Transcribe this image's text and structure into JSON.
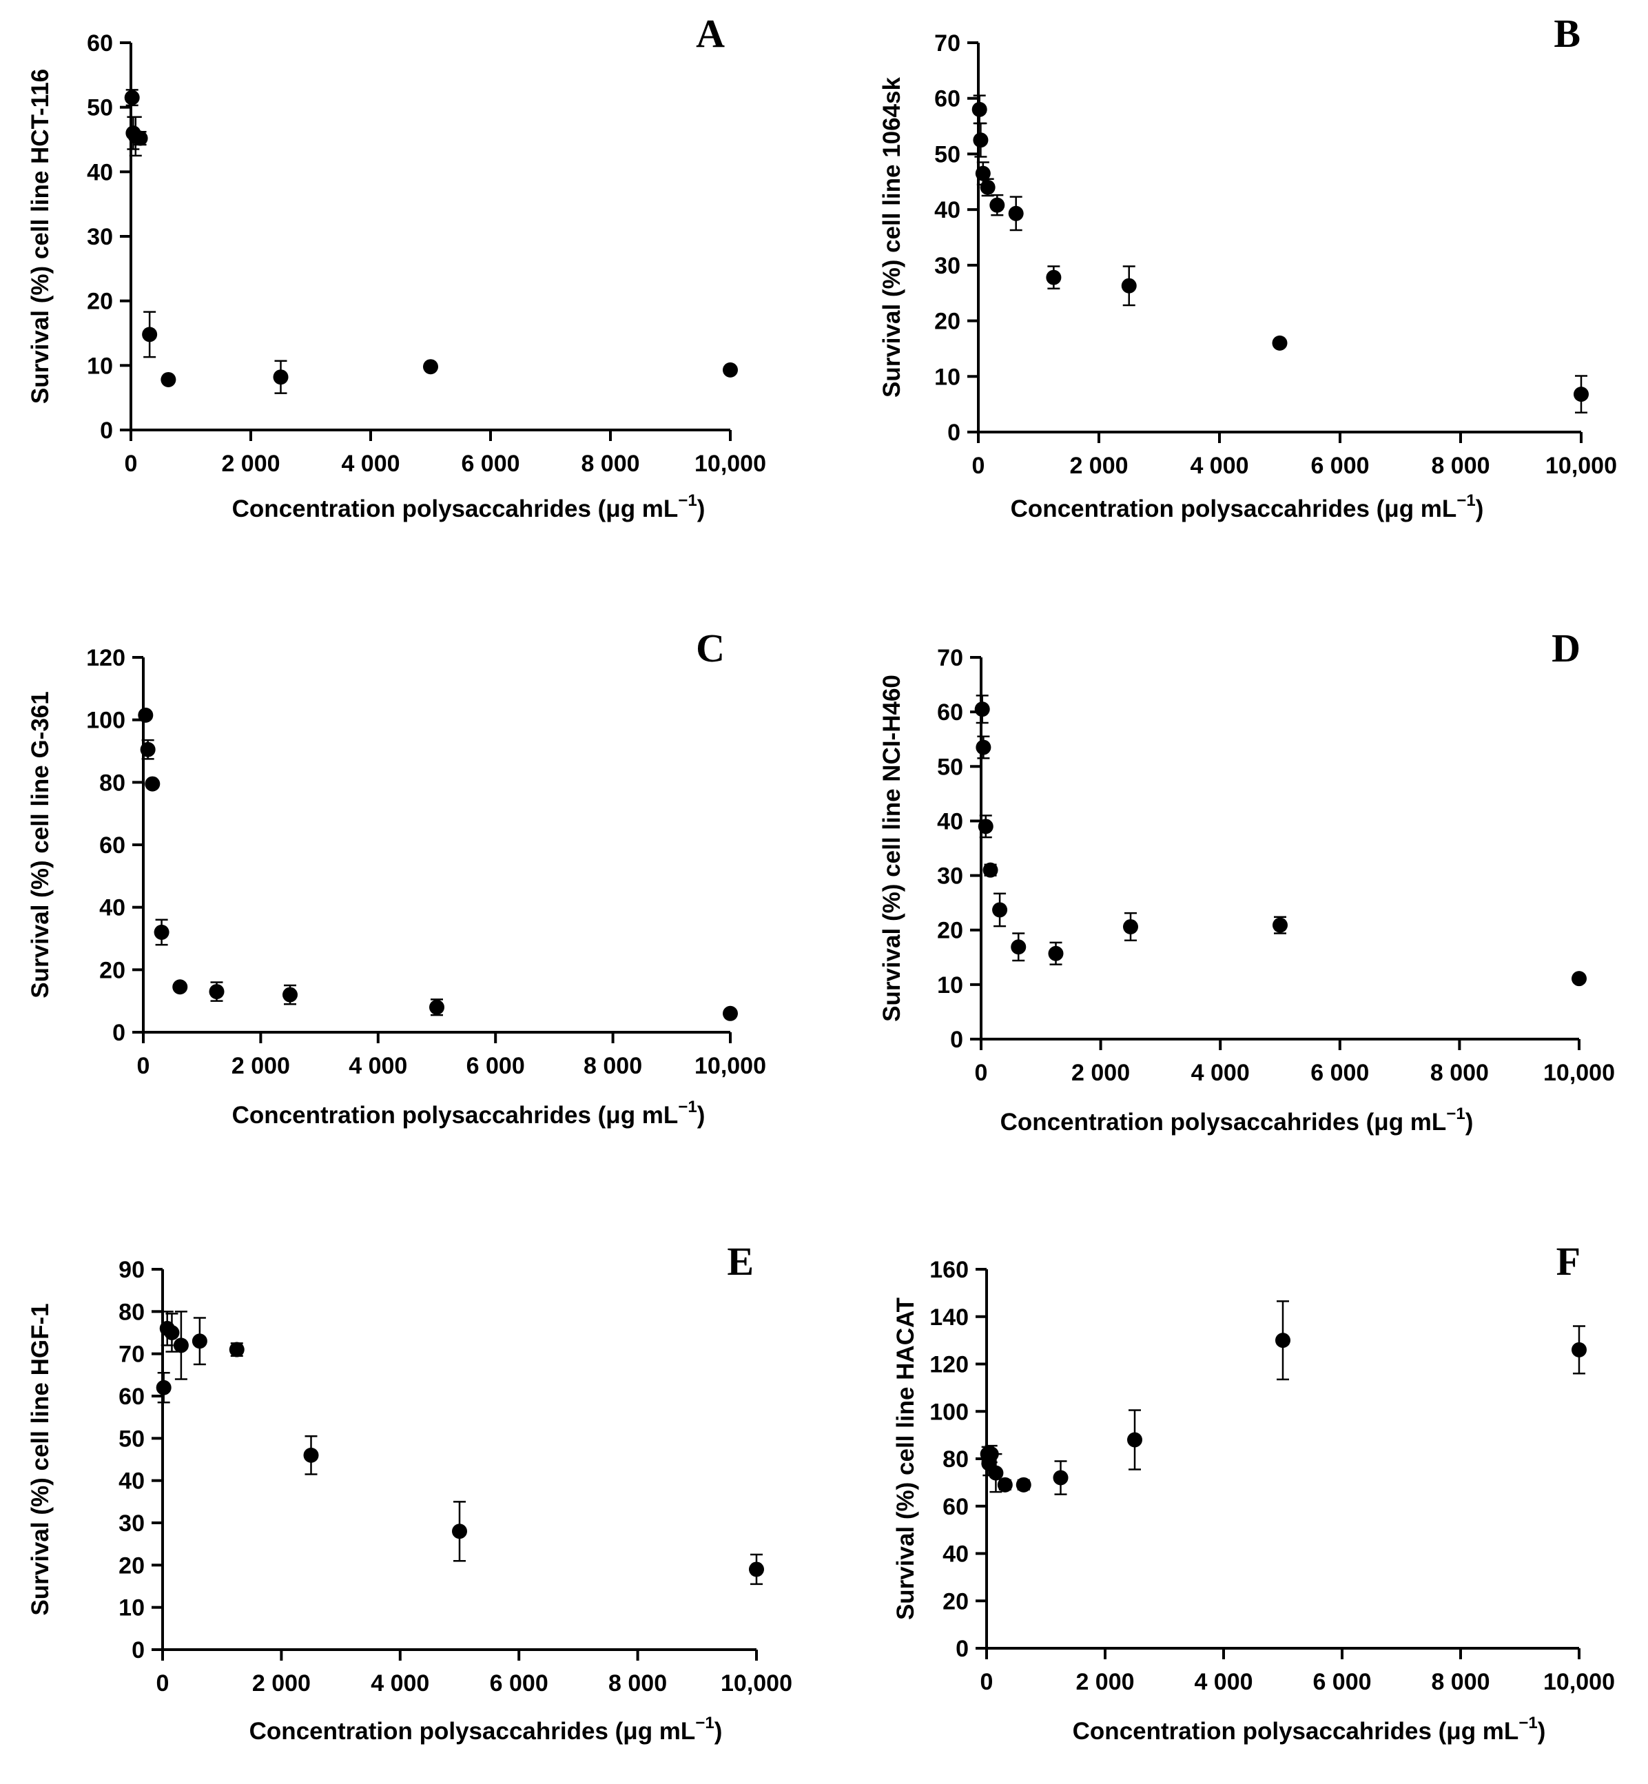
{
  "chart_data": [
    {
      "type": "scatter",
      "panel": "A",
      "cell_line": "HCT-116",
      "ylabel": "Survival (%) cell line HCT-116",
      "xlabel": "Concentration polysaccahrides (μg mL",
      "xlabel_sup": "−1",
      "xlabel_end": ")",
      "xlim": [
        0,
        10000
      ],
      "ylim": [
        0,
        60
      ],
      "xticks": [
        0,
        2000,
        4000,
        6000,
        8000,
        10000
      ],
      "xtick_labels": [
        "0",
        "2 000",
        "4 000",
        "6 000",
        "8 000",
        "10,000"
      ],
      "yticks": [
        0,
        10,
        20,
        30,
        40,
        50,
        60
      ],
      "ytick_labels": [
        "0",
        "10",
        "20",
        "30",
        "40",
        "50",
        "60"
      ],
      "x": [
        19.5,
        39,
        78,
        156,
        312,
        625,
        2500,
        5000,
        10000
      ],
      "y": [
        51.5,
        46,
        45.5,
        45.2,
        14.8,
        7.8,
        8.2,
        9.8,
        9.3
      ],
      "err": [
        1.2,
        2.5,
        3.0,
        1.0,
        3.5,
        0.5,
        2.5,
        0.5,
        0.5
      ]
    },
    {
      "type": "scatter",
      "panel": "B",
      "cell_line": "1064sk",
      "ylabel": "Survival (%) cell line 1064sk",
      "xlabel": "Concentration polysaccahrides (μg mL",
      "xlabel_sup": "−1",
      "xlabel_end": ")",
      "xlim": [
        0,
        10000
      ],
      "ylim": [
        0,
        70
      ],
      "xticks": [
        0,
        2000,
        4000,
        6000,
        8000,
        10000
      ],
      "xtick_labels": [
        "0",
        "2 000",
        "4 000",
        "6 000",
        "8 000",
        "10,000"
      ],
      "yticks": [
        0,
        10,
        20,
        30,
        40,
        50,
        60,
        70
      ],
      "ytick_labels": [
        "0",
        "10",
        "20",
        "30",
        "40",
        "50",
        "60",
        "70"
      ],
      "x": [
        19.5,
        39,
        78,
        156,
        312,
        625,
        1250,
        2500,
        5000,
        10000
      ],
      "y": [
        58,
        52.5,
        46.5,
        44,
        40.8,
        39.3,
        27.8,
        26.3,
        16,
        6.8
      ],
      "err": [
        2.5,
        3.0,
        2.0,
        1.5,
        1.8,
        3.0,
        2.0,
        3.5,
        0.5,
        3.3
      ]
    },
    {
      "type": "scatter",
      "panel": "C",
      "cell_line": "G-361",
      "ylabel": "Survival (%) cell line G-361",
      "xlabel": "Concentration polysaccahrides (μg mL",
      "xlabel_sup": "−1",
      "xlabel_end": ")",
      "xlim": [
        0,
        10000
      ],
      "ylim": [
        0,
        120
      ],
      "xticks": [
        0,
        2000,
        4000,
        6000,
        8000,
        10000
      ],
      "xtick_labels": [
        "0",
        "2 000",
        "4 000",
        "6 000",
        "8 000",
        "10,000"
      ],
      "yticks": [
        0,
        20,
        40,
        60,
        80,
        100,
        120
      ],
      "ytick_labels": [
        "0",
        "20",
        "40",
        "60",
        "80",
        "100",
        "120"
      ],
      "x": [
        39,
        78,
        156,
        312,
        625,
        1250,
        2500,
        5000,
        10000
      ],
      "y": [
        101.5,
        90.5,
        79.5,
        32,
        14.5,
        13,
        12,
        8,
        6
      ],
      "err": [
        1.0,
        3.0,
        1.0,
        4.0,
        1.0,
        3.0,
        3.0,
        2.5,
        1.0
      ]
    },
    {
      "type": "scatter",
      "panel": "D",
      "cell_line": "NCI-H460",
      "ylabel": "Survival (%) cell line NCI-H460",
      "xlabel": "Concentration polysaccahrides (μg mL",
      "xlabel_sup": "−1",
      "xlabel_end": ")",
      "xlim": [
        0,
        10000
      ],
      "ylim": [
        0,
        70
      ],
      "xticks": [
        0,
        2000,
        4000,
        6000,
        8000,
        10000
      ],
      "xtick_labels": [
        "0",
        "2 000",
        "4 000",
        "6 000",
        "8 000",
        "10,000"
      ],
      "yticks": [
        0,
        10,
        20,
        30,
        40,
        50,
        60,
        70
      ],
      "ytick_labels": [
        "0",
        "10",
        "20",
        "30",
        "40",
        "50",
        "60",
        "70"
      ],
      "x": [
        19.5,
        39,
        78,
        156,
        312,
        625,
        1250,
        2500,
        5000,
        10000
      ],
      "y": [
        60.5,
        53.5,
        39,
        31,
        23.7,
        16.9,
        15.7,
        20.6,
        20.9,
        11.1
      ],
      "err": [
        2.5,
        2.0,
        2.0,
        1.0,
        3.0,
        2.5,
        2.0,
        2.5,
        1.5,
        0.5
      ]
    },
    {
      "type": "scatter",
      "panel": "E",
      "cell_line": "HGF-1",
      "ylabel": "Survival (%) cell line HGF-1",
      "xlabel": "Concentration polysaccahrides (μg mL",
      "xlabel_sup": "−1",
      "xlabel_end": ")",
      "xlim": [
        0,
        10000
      ],
      "ylim": [
        0,
        90
      ],
      "xticks": [
        0,
        2000,
        4000,
        6000,
        8000,
        10000
      ],
      "xtick_labels": [
        "0",
        "2 000",
        "4 000",
        "6 000",
        "8 000",
        "10,000"
      ],
      "yticks": [
        0,
        10,
        20,
        30,
        40,
        50,
        60,
        70,
        80,
        90
      ],
      "ytick_labels": [
        "0",
        "10",
        "20",
        "30",
        "40",
        "50",
        "60",
        "70",
        "80",
        "90"
      ],
      "x": [
        19.5,
        78,
        156,
        312,
        625,
        1250,
        2500,
        5000,
        10000
      ],
      "y": [
        62,
        76,
        75,
        72,
        73,
        71,
        46,
        28,
        19
      ],
      "err": [
        3.5,
        4.0,
        4.5,
        8.0,
        5.5,
        1.5,
        4.5,
        7.0,
        3.5
      ]
    },
    {
      "type": "scatter",
      "panel": "F",
      "cell_line": "HACAT",
      "ylabel": "Survival (%) cell line HACAT",
      "xlabel": "Concentration polysaccahrides (μg mL",
      "xlabel_sup": "−1",
      "xlabel_end": ")",
      "xlim": [
        0,
        10000
      ],
      "ylim": [
        0,
        160
      ],
      "xticks": [
        0,
        2000,
        4000,
        6000,
        8000,
        10000
      ],
      "xtick_labels": [
        "0",
        "2 000",
        "4 000",
        "6 000",
        "8 000",
        "10,000"
      ],
      "yticks": [
        0,
        20,
        40,
        60,
        80,
        100,
        120,
        140,
        160
      ],
      "ytick_labels": [
        "0",
        "20",
        "40",
        "60",
        "80",
        "100",
        "120",
        "140",
        "160"
      ],
      "x": [
        19.5,
        39,
        78,
        156,
        312,
        625,
        1250,
        2500,
        5000,
        10000
      ],
      "y": [
        82,
        78,
        82,
        74,
        69,
        69,
        72,
        88,
        130,
        126
      ],
      "err": [
        3.0,
        5.0,
        3.5,
        8.0,
        2.0,
        2.0,
        7.0,
        12.5,
        16.5,
        10.0
      ]
    }
  ]
}
